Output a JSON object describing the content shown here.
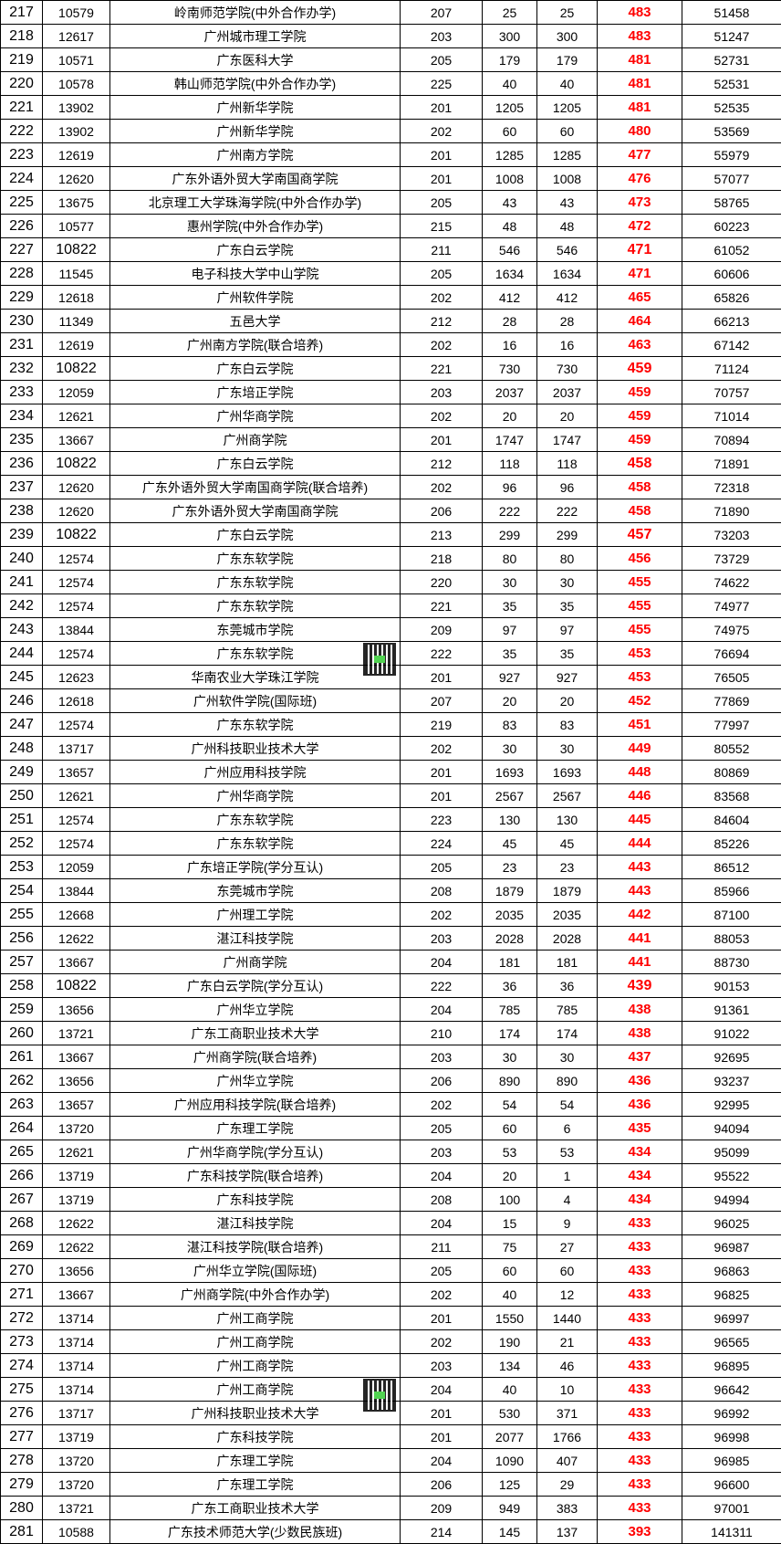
{
  "colors": {
    "score": "#ff0000",
    "border": "#000000"
  },
  "rows": [
    [
      "217",
      "10579",
      "岭南师范学院(中外合作办学)",
      "207",
      "25",
      "25",
      "483",
      "51458"
    ],
    [
      "218",
      "12617",
      "广州城市理工学院",
      "203",
      "300",
      "300",
      "483",
      "51247"
    ],
    [
      "219",
      "10571",
      "广东医科大学",
      "205",
      "179",
      "179",
      "481",
      "52731"
    ],
    [
      "220",
      "10578",
      "韩山师范学院(中外合作办学)",
      "225",
      "40",
      "40",
      "481",
      "52531"
    ],
    [
      "221",
      "13902",
      "广州新华学院",
      "201",
      "1205",
      "1205",
      "481",
      "52535"
    ],
    [
      "222",
      "13902",
      "广州新华学院",
      "202",
      "60",
      "60",
      "480",
      "53569"
    ],
    [
      "223",
      "12619",
      "广州南方学院",
      "201",
      "1285",
      "1285",
      "477",
      "55979"
    ],
    [
      "224",
      "12620",
      "广东外语外贸大学南国商学院",
      "201",
      "1008",
      "1008",
      "476",
      "57077"
    ],
    [
      "225",
      "13675",
      "北京理工大学珠海学院(中外合作办学)",
      "205",
      "43",
      "43",
      "473",
      "58765"
    ],
    [
      "226",
      "10577",
      "惠州学院(中外合作办学)",
      "215",
      "48",
      "48",
      "472",
      "60223"
    ],
    [
      "227",
      "10822",
      "广东白云学院",
      "211",
      "546",
      "546",
      "471",
      "61052"
    ],
    [
      "228",
      "11545",
      "电子科技大学中山学院",
      "205",
      "1634",
      "1634",
      "471",
      "60606"
    ],
    [
      "229",
      "12618",
      "广州软件学院",
      "202",
      "412",
      "412",
      "465",
      "65826"
    ],
    [
      "230",
      "11349",
      "五邑大学",
      "212",
      "28",
      "28",
      "464",
      "66213"
    ],
    [
      "231",
      "12619",
      "广州南方学院(联合培养)",
      "202",
      "16",
      "16",
      "463",
      "67142"
    ],
    [
      "232",
      "10822",
      "广东白云学院",
      "221",
      "730",
      "730",
      "459",
      "71124"
    ],
    [
      "233",
      "12059",
      "广东培正学院",
      "203",
      "2037",
      "2037",
      "459",
      "70757"
    ],
    [
      "234",
      "12621",
      "广州华商学院",
      "202",
      "20",
      "20",
      "459",
      "71014"
    ],
    [
      "235",
      "13667",
      "广州商学院",
      "201",
      "1747",
      "1747",
      "459",
      "70894"
    ],
    [
      "236",
      "10822",
      "广东白云学院",
      "212",
      "118",
      "118",
      "458",
      "71891"
    ],
    [
      "237",
      "12620",
      "广东外语外贸大学南国商学院(联合培养)",
      "202",
      "96",
      "96",
      "458",
      "72318"
    ],
    [
      "238",
      "12620",
      "广东外语外贸大学南国商学院",
      "206",
      "222",
      "222",
      "458",
      "71890"
    ],
    [
      "239",
      "10822",
      "广东白云学院",
      "213",
      "299",
      "299",
      "457",
      "73203"
    ],
    [
      "240",
      "12574",
      "广东东软学院",
      "218",
      "80",
      "80",
      "456",
      "73729"
    ],
    [
      "241",
      "12574",
      "广东东软学院",
      "220",
      "30",
      "30",
      "455",
      "74622"
    ],
    [
      "242",
      "12574",
      "广东东软学院",
      "221",
      "35",
      "35",
      "455",
      "74977"
    ],
    [
      "243",
      "13844",
      "东莞城市学院",
      "209",
      "97",
      "97",
      "455",
      "74975"
    ],
    [
      "244",
      "12574",
      "广东东软学院",
      "222",
      "35",
      "35",
      "453",
      "76694"
    ],
    [
      "245",
      "12623",
      "华南农业大学珠江学院",
      "201",
      "927",
      "927",
      "453",
      "76505"
    ],
    [
      "246",
      "12618",
      "广州软件学院(国际班)",
      "207",
      "20",
      "20",
      "452",
      "77869"
    ],
    [
      "247",
      "12574",
      "广东东软学院",
      "219",
      "83",
      "83",
      "451",
      "77997"
    ],
    [
      "248",
      "13717",
      "广州科技职业技术大学",
      "202",
      "30",
      "30",
      "449",
      "80552"
    ],
    [
      "249",
      "13657",
      "广州应用科技学院",
      "201",
      "1693",
      "1693",
      "448",
      "80869"
    ],
    [
      "250",
      "12621",
      "广州华商学院",
      "201",
      "2567",
      "2567",
      "446",
      "83568"
    ],
    [
      "251",
      "12574",
      "广东东软学院",
      "223",
      "130",
      "130",
      "445",
      "84604"
    ],
    [
      "252",
      "12574",
      "广东东软学院",
      "224",
      "45",
      "45",
      "444",
      "85226"
    ],
    [
      "253",
      "12059",
      "广东培正学院(学分互认)",
      "205",
      "23",
      "23",
      "443",
      "86512"
    ],
    [
      "254",
      "13844",
      "东莞城市学院",
      "208",
      "1879",
      "1879",
      "443",
      "85966"
    ],
    [
      "255",
      "12668",
      "广州理工学院",
      "202",
      "2035",
      "2035",
      "442",
      "87100"
    ],
    [
      "256",
      "12622",
      "湛江科技学院",
      "203",
      "2028",
      "2028",
      "441",
      "88053"
    ],
    [
      "257",
      "13667",
      "广州商学院",
      "204",
      "181",
      "181",
      "441",
      "88730"
    ],
    [
      "258",
      "10822",
      "广东白云学院(学分互认)",
      "222",
      "36",
      "36",
      "439",
      "90153"
    ],
    [
      "259",
      "13656",
      "广州华立学院",
      "204",
      "785",
      "785",
      "438",
      "91361"
    ],
    [
      "260",
      "13721",
      "广东工商职业技术大学",
      "210",
      "174",
      "174",
      "438",
      "91022"
    ],
    [
      "261",
      "13667",
      "广州商学院(联合培养)",
      "203",
      "30",
      "30",
      "437",
      "92695"
    ],
    [
      "262",
      "13656",
      "广州华立学院",
      "206",
      "890",
      "890",
      "436",
      "93237"
    ],
    [
      "263",
      "13657",
      "广州应用科技学院(联合培养)",
      "202",
      "54",
      "54",
      "436",
      "92995"
    ],
    [
      "264",
      "13720",
      "广东理工学院",
      "205",
      "60",
      "6",
      "435",
      "94094"
    ],
    [
      "265",
      "12621",
      "广州华商学院(学分互认)",
      "203",
      "53",
      "53",
      "434",
      "95099"
    ],
    [
      "266",
      "13719",
      "广东科技学院(联合培养)",
      "204",
      "20",
      "1",
      "434",
      "95522"
    ],
    [
      "267",
      "13719",
      "广东科技学院",
      "208",
      "100",
      "4",
      "434",
      "94994"
    ],
    [
      "268",
      "12622",
      "湛江科技学院",
      "204",
      "15",
      "9",
      "433",
      "96025"
    ],
    [
      "269",
      "12622",
      "湛江科技学院(联合培养)",
      "211",
      "75",
      "27",
      "433",
      "96987"
    ],
    [
      "270",
      "13656",
      "广州华立学院(国际班)",
      "205",
      "60",
      "60",
      "433",
      "96863"
    ],
    [
      "271",
      "13667",
      "广州商学院(中外合作办学)",
      "202",
      "40",
      "12",
      "433",
      "96825"
    ],
    [
      "272",
      "13714",
      "广州工商学院",
      "201",
      "1550",
      "1440",
      "433",
      "96997"
    ],
    [
      "273",
      "13714",
      "广州工商学院",
      "202",
      "190",
      "21",
      "433",
      "96565"
    ],
    [
      "274",
      "13714",
      "广州工商学院",
      "203",
      "134",
      "46",
      "433",
      "96895"
    ],
    [
      "275",
      "13714",
      "广州工商学院",
      "204",
      "40",
      "10",
      "433",
      "96642"
    ],
    [
      "276",
      "13717",
      "广州科技职业技术大学",
      "201",
      "530",
      "371",
      "433",
      "96992"
    ],
    [
      "277",
      "13719",
      "广东科技学院",
      "201",
      "2077",
      "1766",
      "433",
      "96998"
    ],
    [
      "278",
      "13720",
      "广东理工学院",
      "204",
      "1090",
      "407",
      "433",
      "96985"
    ],
    [
      "279",
      "13720",
      "广东理工学院",
      "206",
      "125",
      "29",
      "433",
      "96600"
    ],
    [
      "280",
      "13721",
      "广东工商职业技术大学",
      "209",
      "949",
      "383",
      "433",
      "97001"
    ],
    [
      "281",
      "10588",
      "广东技术师范大学(少数民族班)",
      "214",
      "145",
      "137",
      "393",
      "141311"
    ]
  ]
}
